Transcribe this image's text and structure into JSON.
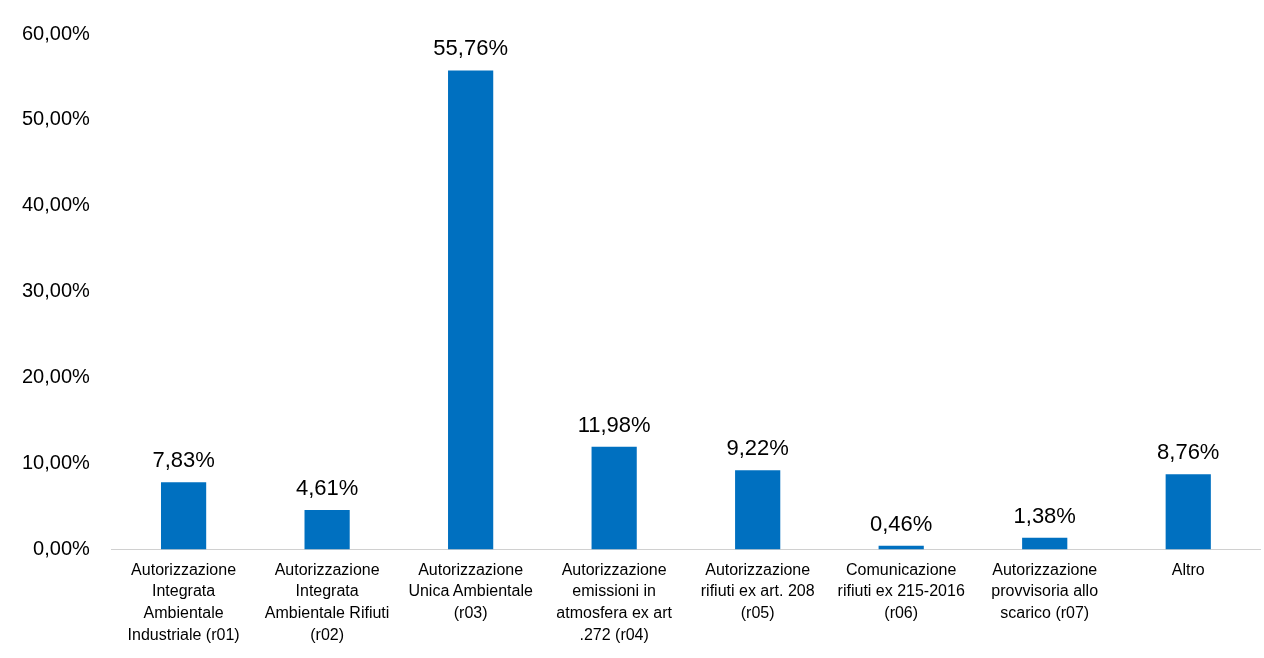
{
  "chart_data": {
    "type": "bar",
    "categories": [
      "Autorizzazione Integrata Ambientale Industriale (r01)",
      "Autorizzazione Integrata Ambientale Rifiuti (r02)",
      "Autorizzazione Unica Ambientale (r03)",
      "Autorizzazione emissioni in atmosfera ex art .272 (r04)",
      "Autorizzazione rifiuti ex art. 208 (r05)",
      "Comunicazione rifiuti ex 215-2016 (r06)",
      "Autorizzazione provvisoria allo scarico (r07)",
      "Altro"
    ],
    "values": [
      7.83,
      4.61,
      55.76,
      11.98,
      9.22,
      0.46,
      1.38,
      8.76
    ],
    "value_labels": [
      "7,83%",
      "4,61%",
      "55,76%",
      "11,98%",
      "9,22%",
      "0,46%",
      "1,38%",
      "8,76%"
    ],
    "color": "#0070c0",
    "ylim": [
      0,
      60
    ],
    "yticks": [
      {
        "value": 0,
        "label": "0,00%"
      },
      {
        "value": 10,
        "label": "10,00%"
      },
      {
        "value": 20,
        "label": "20,00%"
      },
      {
        "value": 30,
        "label": "30,00%"
      },
      {
        "value": 40,
        "label": "40,00%"
      },
      {
        "value": 50,
        "label": "50,00%"
      },
      {
        "value": 60,
        "label": "60,00%"
      }
    ],
    "grid": false,
    "legend": false
  }
}
